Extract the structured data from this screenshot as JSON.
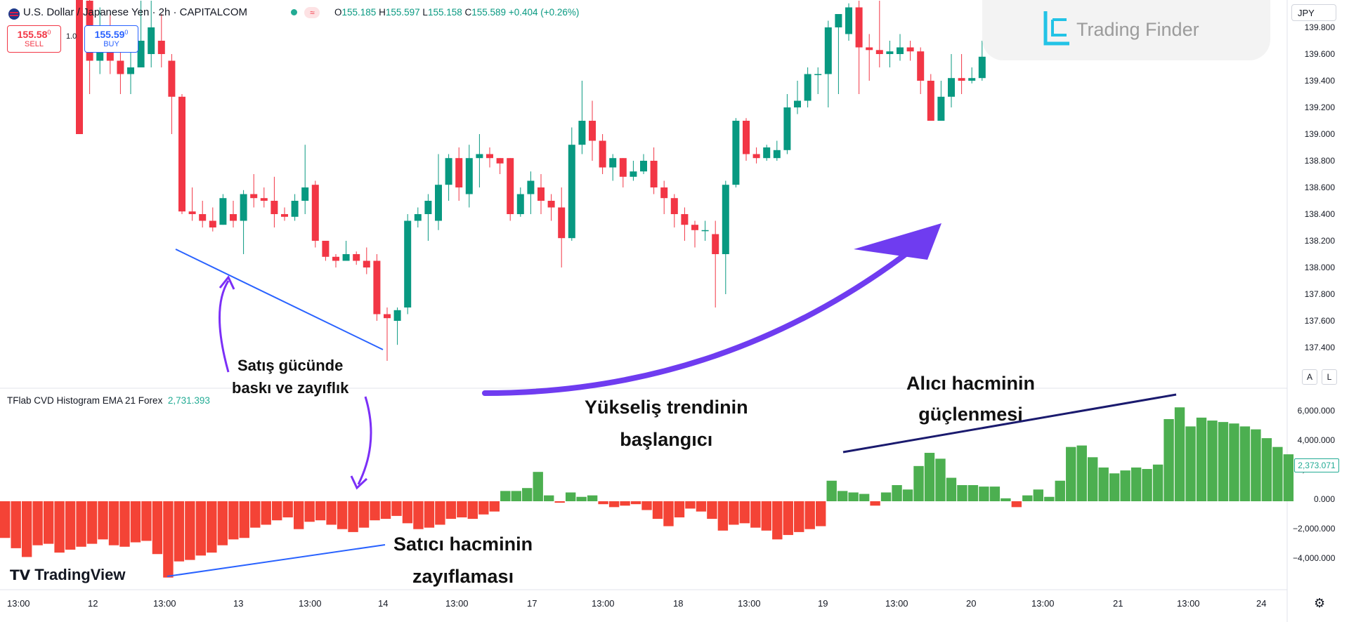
{
  "header": {
    "symbol": "U.S. Dollar / Japanese Yen · 2h · CAPITALCOM",
    "open_label": "O",
    "open": "155.185",
    "high_label": "H",
    "high": "155.597",
    "low_label": "L",
    "low": "155.158",
    "close_label": "C",
    "close": "155.589",
    "change": "+0.404 (+0.26%)",
    "qty": "1.0"
  },
  "trade": {
    "sell_price": "155.58",
    "sell_sup": "0",
    "sell_label": "SELL",
    "buy_price": "155.59",
    "buy_sup": "0",
    "buy_label": "BUY"
  },
  "brand": {
    "name": "Trading Finder"
  },
  "currency": "JPY",
  "price_axis": [
    "139.800",
    "139.600",
    "139.400",
    "139.200",
    "139.000",
    "138.800",
    "138.600",
    "138.400",
    "138.200",
    "138.000",
    "137.800",
    "137.600",
    "137.400"
  ],
  "indicator": {
    "name": "TFlab CVD Histogram EMA 21 Forex",
    "value": "2,731.393",
    "last_badge": "2,373.071"
  },
  "volume_axis": [
    "6,000.000",
    "4,000.000",
    "2,000.000",
    "0.000",
    "−2,000.000",
    "−4,000.000"
  ],
  "time_axis": [
    "13:00",
    "12",
    "13:00",
    "13",
    "13:00",
    "14",
    "13:00",
    "17",
    "13:00",
    "18",
    "13:00",
    "19",
    "13:00",
    "20",
    "13:00",
    "21",
    "13:00",
    "24"
  ],
  "buttons": {
    "auto": "A",
    "log": "L"
  },
  "tradingview": "TradingView",
  "annotations": {
    "seller_pressure": [
      "Satış gücünde",
      "baskı ve zayıflık"
    ],
    "uptrend_start": [
      "Yükseliş trendinin",
      "başlangıcı"
    ],
    "buyer_volume": [
      "Alıcı hacminin",
      "güçlenmesi"
    ],
    "seller_volume": [
      "Satıcı hacminin",
      "zayıflaması"
    ]
  },
  "colors": {
    "up": "#089981",
    "down": "#f23645",
    "hist_up": "#4caf50",
    "hist_down": "#f44336",
    "annotation_arrow": "#7b2ff7",
    "trendline": "#2962ff"
  },
  "chart_data": [
    {
      "type": "candlestick",
      "title": "U.S. Dollar / Japanese Yen · 2h · CAPITALCOM",
      "ylim": [
        137.2,
        140.0
      ],
      "candles": [
        [
          140.3,
          139.0,
          139.0,
          140.3
        ],
        [
          140.0,
          139.55,
          139.3,
          140.2
        ],
        [
          139.55,
          139.65,
          139.45,
          139.95
        ],
        [
          139.65,
          139.55,
          139.45,
          139.9
        ],
        [
          139.55,
          139.45,
          139.3,
          139.75
        ],
        [
          139.45,
          139.5,
          139.3,
          139.7
        ],
        [
          139.5,
          139.7,
          139.5,
          140.0
        ],
        [
          139.6,
          139.8,
          139.5,
          140.0
        ],
        [
          139.7,
          139.6,
          139.5,
          139.9
        ],
        [
          139.55,
          139.28,
          139.0,
          139.6
        ],
        [
          139.28,
          138.42,
          138.4,
          139.3
        ],
        [
          138.42,
          138.4,
          138.35,
          138.6
        ],
        [
          138.4,
          138.35,
          138.3,
          138.5
        ],
        [
          138.35,
          138.3,
          138.27,
          138.45
        ],
        [
          138.32,
          138.52,
          138.32,
          138.55
        ],
        [
          138.4,
          138.35,
          138.3,
          138.5
        ],
        [
          138.35,
          138.55,
          138.1,
          138.58
        ],
        [
          138.55,
          138.52,
          138.45,
          138.7
        ],
        [
          138.52,
          138.5,
          138.45,
          138.6
        ],
        [
          138.5,
          138.4,
          138.3,
          138.68
        ],
        [
          138.4,
          138.38,
          138.35,
          138.45
        ],
        [
          138.38,
          138.5,
          138.35,
          138.55
        ],
        [
          138.5,
          138.6,
          138.4,
          138.92
        ],
        [
          138.62,
          138.2,
          138.15,
          138.65
        ],
        [
          138.2,
          138.08,
          138.05,
          138.2
        ],
        [
          138.08,
          138.05,
          138.0,
          138.1
        ],
        [
          138.05,
          138.1,
          138.05,
          138.2
        ],
        [
          138.1,
          138.05,
          138.02,
          138.12
        ],
        [
          138.05,
          138.0,
          137.95,
          138.15
        ],
        [
          138.05,
          137.65,
          137.6,
          138.1
        ],
        [
          137.65,
          137.62,
          137.3,
          137.7
        ],
        [
          137.6,
          137.68,
          137.42,
          137.7
        ],
        [
          137.7,
          138.35,
          137.65,
          138.4
        ],
        [
          138.35,
          138.4,
          138.3,
          138.45
        ],
        [
          138.4,
          138.5,
          138.2,
          138.55
        ],
        [
          138.35,
          138.62,
          138.28,
          138.85
        ],
        [
          138.62,
          138.82,
          138.5,
          138.85
        ],
        [
          138.82,
          138.6,
          138.5,
          138.9
        ],
        [
          138.55,
          138.82,
          138.45,
          138.92
        ],
        [
          138.82,
          138.85,
          138.6,
          139.0
        ],
        [
          138.85,
          138.82,
          138.75,
          138.9
        ],
        [
          138.82,
          138.78,
          138.7,
          138.82
        ],
        [
          138.82,
          138.4,
          138.35,
          138.82
        ],
        [
          138.4,
          138.55,
          138.38,
          138.6
        ],
        [
          138.55,
          138.65,
          138.4,
          138.72
        ],
        [
          138.6,
          138.5,
          138.4,
          138.7
        ],
        [
          138.5,
          138.45,
          138.35,
          138.55
        ],
        [
          138.45,
          138.22,
          138.0,
          138.6
        ],
        [
          138.22,
          138.92,
          138.2,
          139.05
        ],
        [
          138.92,
          139.1,
          138.85,
          139.4
        ],
        [
          139.1,
          138.95,
          138.8,
          139.25
        ],
        [
          138.95,
          138.75,
          138.7,
          139.0
        ],
        [
          138.75,
          138.82,
          138.65,
          138.85
        ],
        [
          138.82,
          138.68,
          138.6,
          138.82
        ],
        [
          138.68,
          138.72,
          138.65,
          138.8
        ],
        [
          138.72,
          138.8,
          138.7,
          138.85
        ],
        [
          138.8,
          138.6,
          138.55,
          138.9
        ],
        [
          138.6,
          138.52,
          138.4,
          138.65
        ],
        [
          138.52,
          138.4,
          138.3,
          138.55
        ],
        [
          138.4,
          138.32,
          138.2,
          138.45
        ],
        [
          138.32,
          138.28,
          138.15,
          138.35
        ],
        [
          138.28,
          138.28,
          138.2,
          138.35
        ],
        [
          138.25,
          138.1,
          137.7,
          138.35
        ],
        [
          138.1,
          138.62,
          137.8,
          138.65
        ],
        [
          138.62,
          139.1,
          138.6,
          139.12
        ],
        [
          139.1,
          138.85,
          138.8,
          139.12
        ],
        [
          138.85,
          138.82,
          138.78,
          138.9
        ],
        [
          138.82,
          138.9,
          138.8,
          138.92
        ],
        [
          138.82,
          138.88,
          138.8,
          138.95
        ],
        [
          138.88,
          139.2,
          138.85,
          139.3
        ],
        [
          139.2,
          139.25,
          139.15,
          139.4
        ],
        [
          139.25,
          139.45,
          139.2,
          139.5
        ],
        [
          139.45,
          139.45,
          139.3,
          139.5
        ],
        [
          139.45,
          139.8,
          139.2,
          139.85
        ],
        [
          139.8,
          139.9,
          139.3,
          139.9
        ],
        [
          139.75,
          139.95,
          139.7,
          139.98
        ],
        [
          139.95,
          139.65,
          139.3,
          140.0
        ],
        [
          139.65,
          139.63,
          139.4,
          139.75
        ],
        [
          139.63,
          139.6,
          139.5,
          140.0
        ],
        [
          139.6,
          139.62,
          139.5,
          139.7
        ],
        [
          139.6,
          139.65,
          139.55,
          139.75
        ],
        [
          139.65,
          139.62,
          139.55,
          139.7
        ],
        [
          139.62,
          139.4,
          139.3,
          139.65
        ],
        [
          139.4,
          139.1,
          139.1,
          139.45
        ],
        [
          139.1,
          139.28,
          139.1,
          139.4
        ],
        [
          139.28,
          139.42,
          139.2,
          139.6
        ],
        [
          139.42,
          139.4,
          139.3,
          139.6
        ],
        [
          139.4,
          139.42,
          139.38,
          139.5
        ],
        [
          139.42,
          139.58,
          139.4,
          139.7
        ]
      ]
    },
    {
      "type": "bar",
      "title": "TFlab CVD Histogram EMA 21 Forex",
      "ylim": [
        -5000,
        7000
      ],
      "values": [
        -2500,
        -3200,
        -3800,
        -3000,
        -2900,
        -3500,
        -3300,
        -3100,
        -2900,
        -2600,
        -3000,
        -3100,
        -2800,
        -2700,
        -3600,
        -5200,
        -4100,
        -4000,
        -3700,
        -3500,
        -3000,
        -2600,
        -2500,
        -1800,
        -1600,
        -1300,
        -1100,
        -1900,
        -1400,
        -1300,
        -1600,
        -1900,
        -2100,
        -1800,
        -1300,
        -1200,
        -1000,
        -1500,
        -1900,
        -1800,
        -1600,
        -1200,
        -1100,
        -1200,
        -900,
        -700,
        700,
        700,
        900,
        2000,
        400,
        -100,
        600,
        300,
        400,
        -200,
        -400,
        -300,
        -200,
        -600,
        -1200,
        -1700,
        -1100,
        -500,
        -700,
        -1200,
        -2000,
        -1600,
        -1500,
        -1800,
        -2000,
        -2600,
        -2300,
        -2100,
        -1900,
        -1700,
        1400,
        700,
        600,
        500,
        -300,
        600,
        1100,
        800,
        2400,
        3300,
        2900,
        1600,
        1100,
        1100,
        1000,
        1000,
        200,
        -400,
        400,
        800,
        300,
        1400,
        3700,
        3800,
        3000,
        2300,
        1900,
        2100,
        2300,
        2200,
        2500,
        5600,
        6400,
        5100,
        5700,
        5500,
        5400,
        5300,
        5100,
        4900,
        4300,
        3700,
        3200,
        2400
      ]
    }
  ]
}
